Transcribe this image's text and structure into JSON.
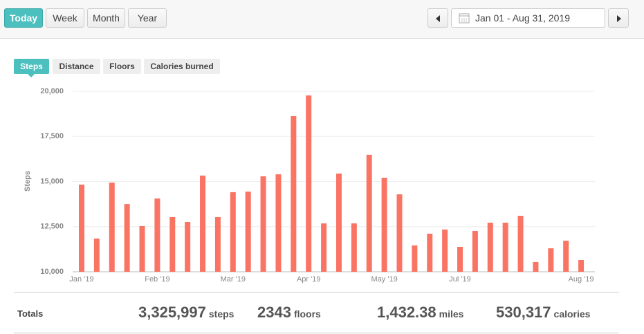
{
  "toolbar": {
    "periods": [
      "Today",
      "Week",
      "Month",
      "Year"
    ],
    "date_range": "Jan 01 - Aug 31, 2019"
  },
  "tabs": [
    "Steps",
    "Distance",
    "Floors",
    "Calories burned"
  ],
  "chart_data": {
    "type": "bar",
    "y_label": "Steps",
    "color": "#fa7464",
    "grid": true,
    "categories": [
      "Jan '19",
      null,
      null,
      null,
      null,
      "Feb '19",
      null,
      null,
      null,
      null,
      "Mar '19",
      null,
      null,
      null,
      null,
      "Apr '19",
      null,
      null,
      null,
      null,
      "May '19",
      null,
      null,
      null,
      null,
      "Jul '19",
      null,
      null,
      null,
      null,
      null,
      null,
      null,
      "Aug '19"
    ],
    "values": [
      14830,
      11840,
      14940,
      13750,
      12530,
      14060,
      13030,
      12760,
      15330,
      13030,
      14410,
      14440,
      15290,
      15400,
      18620,
      19770,
      12680,
      15440,
      12680,
      16480,
      15210,
      14290,
      11460,
      12110,
      12340,
      11380,
      12260,
      12720,
      12720,
      13100,
      10540,
      11300,
      11720,
      10650
    ],
    "ylim": [
      10000,
      20000
    ],
    "yticks": [
      {
        "value": 10000,
        "label": "10,000"
      },
      {
        "value": 12500,
        "label": "12,500"
      },
      {
        "value": 15000,
        "label": "15,000"
      },
      {
        "value": 17500,
        "label": "17,500"
      },
      {
        "value": 20000,
        "label": "20,000"
      }
    ]
  },
  "totals": {
    "label": "Totals",
    "items": [
      {
        "value": "3,325,997",
        "unit": "steps"
      },
      {
        "value": "2343",
        "unit": "floors"
      },
      {
        "value": "1,432.38",
        "unit": "miles"
      },
      {
        "value": "530,317",
        "unit": "calories"
      }
    ]
  }
}
